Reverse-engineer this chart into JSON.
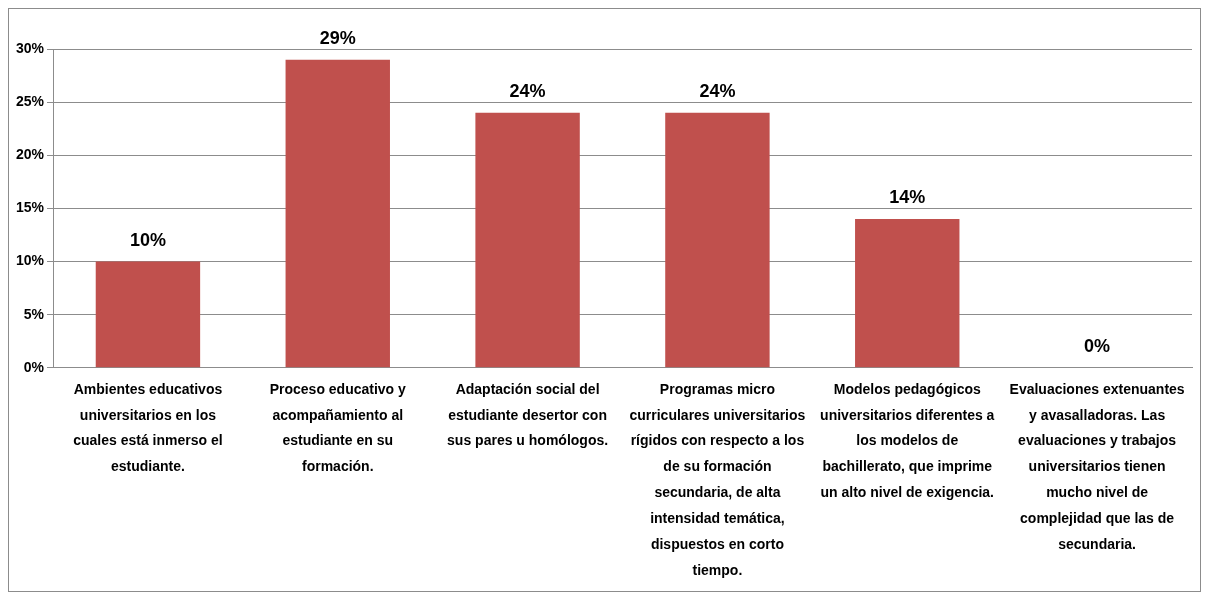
{
  "chart_data": {
    "type": "bar",
    "categories": [
      "Ambientes educativos universitarios en los cuales está inmerso el estudiante.",
      "Proceso educativo y acompañamiento al estudiante en su formación.",
      "Adaptación social del estudiante desertor con sus pares u homólogos.",
      "Programas micro curriculares universitarios rígidos con respecto a los de su formación secundaria, de alta intensidad temática, dispuestos en corto tiempo.",
      "Modelos pedagógicos universitarios diferentes a los modelos de bachillerato, que imprime un alto nivel de exigencia.",
      "Evaluaciones extenuantes y avasalladoras. Las evaluaciones y trabajos universitarios tienen mucho nivel de complejidad que las de secundaria."
    ],
    "values": [
      10,
      29,
      24,
      24,
      14,
      0
    ],
    "value_labels": [
      "10%",
      "29%",
      "24%",
      "24%",
      "14%",
      "0%"
    ],
    "color": "#c0504d",
    "ylim": [
      0,
      30
    ],
    "yticks": [
      {
        "value": 0,
        "label": "0%"
      },
      {
        "value": 5,
        "label": "5%"
      },
      {
        "value": 10,
        "label": "10%"
      },
      {
        "value": 15,
        "label": "15%"
      },
      {
        "value": 20,
        "label": "20%"
      },
      {
        "value": 25,
        "label": "25%"
      },
      {
        "value": 30,
        "label": "30%"
      }
    ],
    "grid": "y",
    "legend": false
  }
}
